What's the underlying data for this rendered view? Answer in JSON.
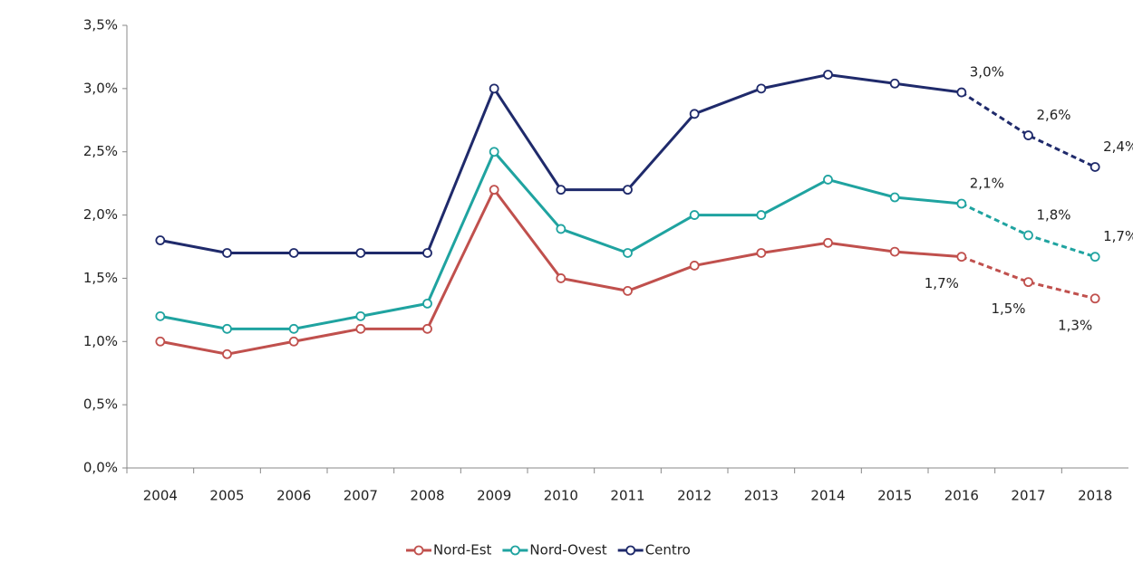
{
  "chart_data": {
    "type": "line",
    "categories": [
      "2004",
      "2005",
      "2006",
      "2007",
      "2008",
      "2009",
      "2010",
      "2011",
      "2012",
      "2013",
      "2014",
      "2015",
      "2016",
      "2017",
      "2018"
    ],
    "series": [
      {
        "name": "Nord-Est",
        "color": "#c0504d",
        "values": [
          1.0,
          0.9,
          1.0,
          1.1,
          1.1,
          2.2,
          1.5,
          1.4,
          1.6,
          1.7,
          1.78,
          1.71,
          1.67,
          1.47,
          1.34
        ],
        "value_labels": [
          null,
          null,
          null,
          null,
          null,
          null,
          null,
          null,
          null,
          null,
          null,
          null,
          "1,7%",
          "1,5%",
          "1,3%"
        ]
      },
      {
        "name": "Nord-Ovest",
        "color": "#1fa3a0",
        "values": [
          1.2,
          1.1,
          1.1,
          1.2,
          1.3,
          2.5,
          1.89,
          1.7,
          2.0,
          2.0,
          2.28,
          2.14,
          2.09,
          1.84,
          1.67
        ],
        "value_labels": [
          null,
          null,
          null,
          null,
          null,
          null,
          null,
          null,
          null,
          null,
          null,
          null,
          "2,1%",
          "1,8%",
          "1,7%"
        ]
      },
      {
        "name": "Centro",
        "color": "#1f2a6b",
        "values": [
          1.8,
          1.7,
          1.7,
          1.7,
          1.7,
          3.0,
          2.2,
          2.2,
          2.8,
          3.0,
          3.11,
          3.04,
          2.97,
          2.63,
          2.38
        ],
        "value_labels": [
          null,
          null,
          null,
          null,
          null,
          null,
          null,
          null,
          null,
          null,
          null,
          null,
          "3,0%",
          "2,6%",
          "2,4%"
        ]
      }
    ],
    "ylim": [
      0,
      3.5
    ],
    "yticks": [
      {
        "value": 0,
        "label": "0,0%"
      },
      {
        "value": 0.5,
        "label": "0,5%"
      },
      {
        "value": 1,
        "label": "1,0%"
      },
      {
        "value": 1.5,
        "label": "1,5%"
      },
      {
        "value": 2,
        "label": "2,0%"
      },
      {
        "value": 2.5,
        "label": "2,5%"
      },
      {
        "value": 3,
        "label": "3,0%"
      },
      {
        "value": 3.5,
        "label": "3,5%"
      }
    ],
    "dashed_from": "2016",
    "legend": "bottom"
  }
}
